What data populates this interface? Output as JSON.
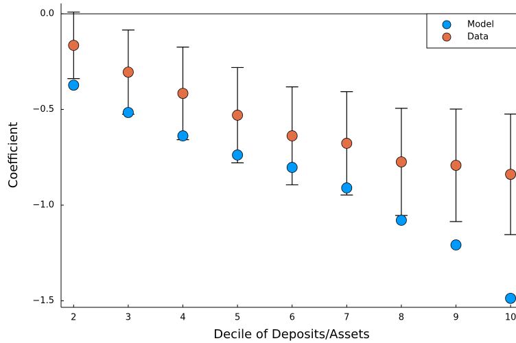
{
  "chart_data": {
    "type": "scatter",
    "x_label": "Decile of Deposits/Assets",
    "y_label": "Coefficient",
    "x": [
      2,
      3,
      4,
      5,
      6,
      7,
      8,
      9,
      10
    ],
    "series": [
      {
        "name": "Model",
        "color": "#009afa",
        "values": [
          -0.373,
          -0.516,
          -0.638,
          -0.738,
          -0.803,
          -0.91,
          -1.079,
          -1.208,
          -1.487
        ]
      },
      {
        "name": "Data",
        "color": "#e36f47",
        "values": [
          -0.165,
          -0.305,
          -0.416,
          -0.53,
          -0.638,
          -0.677,
          -0.774,
          -0.792,
          -0.839
        ],
        "errors": [
          0.174,
          0.22,
          0.242,
          0.249,
          0.256,
          0.27,
          0.28,
          0.294,
          0.315
        ]
      }
    ],
    "xlim": [
      1.77,
      10.23
    ],
    "ylim": [
      -1.534,
      0.054
    ],
    "xticks": [
      2,
      3,
      4,
      5,
      6,
      7,
      8,
      9,
      10
    ],
    "yticks": [
      {
        "value": 0,
        "label": "0.0"
      },
      {
        "value": -0.5,
        "label": "−0.5"
      },
      {
        "value": -1.0,
        "label": "−1.0"
      },
      {
        "value": -1.5,
        "label": "−1.5"
      }
    ],
    "hline": 0,
    "legend": "top-right"
  }
}
